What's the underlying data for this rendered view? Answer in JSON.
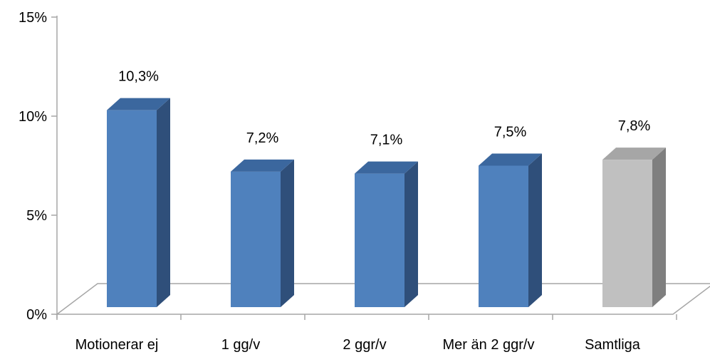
{
  "chart_data": {
    "type": "bar",
    "title": "",
    "xlabel": "",
    "ylabel": "",
    "categories": [
      "Motionerar ej",
      "1 gg/v",
      "2 ggr/v",
      "Mer än 2 ggr/v",
      "Samtliga"
    ],
    "values": [
      10.3,
      7.2,
      7.1,
      7.5,
      7.8
    ],
    "data_labels": [
      "10,3%",
      "7,2%",
      "7,1%",
      "7,5%",
      "7,8%"
    ],
    "ylim": [
      0,
      15
    ],
    "yticks": [
      0,
      5,
      10,
      15
    ],
    "ytick_labels": [
      "0%",
      "5%",
      "10%",
      "15%"
    ],
    "grid": false,
    "legend": "none",
    "style": "3d-column",
    "colors": {
      "series_front": "#4F81BD",
      "series_side": "#2F4F7A",
      "series_top": "#3B679E",
      "highlight_front": "#C0C0C0",
      "highlight_side": "#7F7F7F",
      "highlight_top": "#A6A6A6",
      "axis": "#A6A6A6"
    },
    "highlight_category": "Samtliga"
  }
}
